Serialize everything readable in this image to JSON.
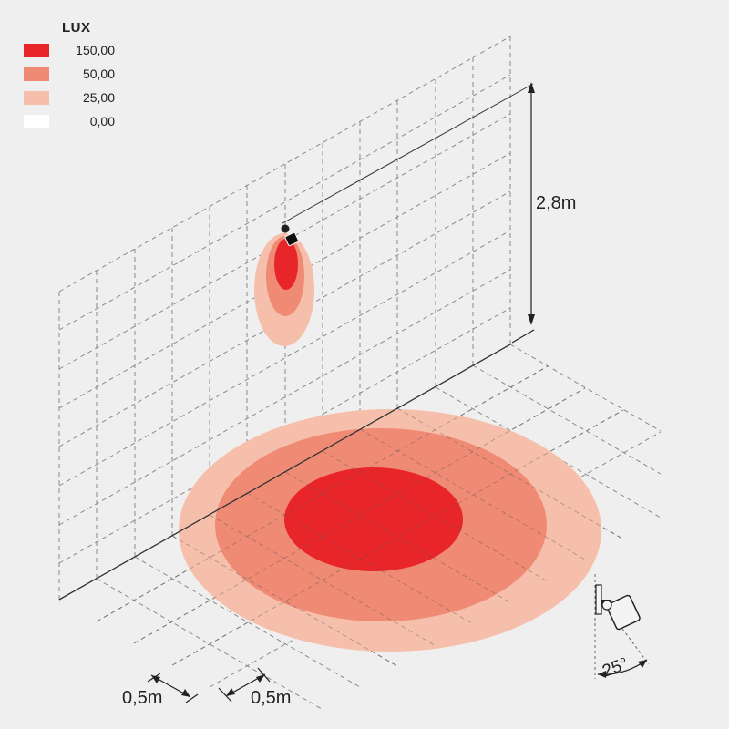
{
  "legend": {
    "title": "LUX",
    "items": [
      {
        "value": "150,00",
        "color": "#e8262a"
      },
      {
        "value": "50,00",
        "color": "#ef8a75"
      },
      {
        "value": "25,00",
        "color": "#f6bfab"
      },
      {
        "value": "0,00",
        "color": "#ffffff"
      }
    ]
  },
  "dimensions": {
    "height_label": "2,8m",
    "grid_x_label": "0,5m",
    "grid_y_label": "0,5m",
    "beam_angle_label": "25°"
  }
}
